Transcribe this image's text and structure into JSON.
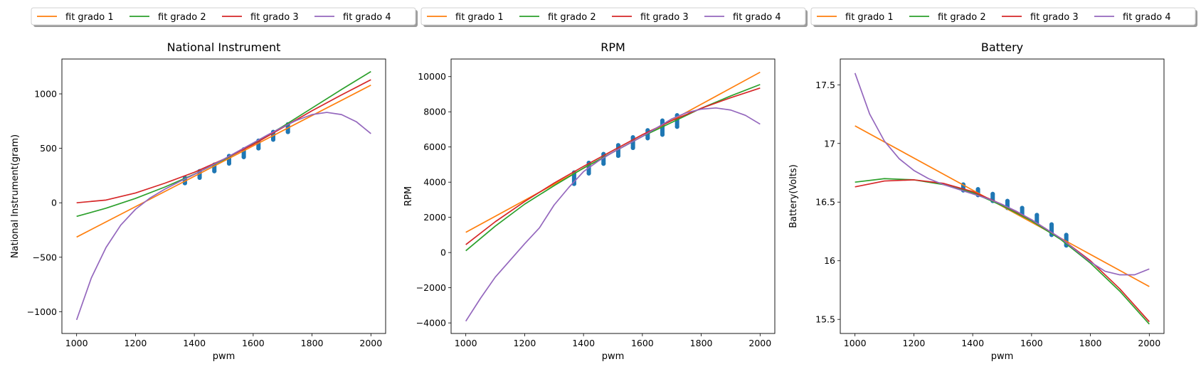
{
  "chart_data": [
    {
      "type": "scatter",
      "title": "National Instrument",
      "xlabel": "pwm",
      "ylabel": "National Instrument(gram)",
      "xlim": [
        950,
        2050
      ],
      "ylim": [
        -1200,
        1320
      ],
      "xticks": [
        1000,
        1200,
        1400,
        1600,
        1800,
        2000
      ],
      "yticks": [
        -1000,
        -500,
        0,
        500,
        1000
      ],
      "legend": {
        "placement": "top",
        "entries": [
          "fit grado 1",
          "fit grado 2",
          "fit grado 3",
          "fit grado 4"
        ]
      },
      "scatter_points": [
        [
          1368,
          180
        ],
        [
          1368,
          230
        ],
        [
          1418,
          230
        ],
        [
          1418,
          290
        ],
        [
          1468,
          290
        ],
        [
          1468,
          350
        ],
        [
          1518,
          360
        ],
        [
          1518,
          430
        ],
        [
          1568,
          420
        ],
        [
          1568,
          490
        ],
        [
          1618,
          500
        ],
        [
          1618,
          570
        ],
        [
          1668,
          580
        ],
        [
          1668,
          650
        ],
        [
          1718,
          650
        ],
        [
          1718,
          720
        ]
      ],
      "series": [
        {
          "name": "fit grado 1",
          "x": [
            1000,
            2000
          ],
          "y": [
            -315,
            1080
          ]
        },
        {
          "name": "fit grado 2",
          "x": [
            1000,
            1100,
            1200,
            1300,
            1400,
            1500,
            1600,
            1700,
            1800,
            1900,
            2000
          ],
          "y": [
            -125,
            -50,
            40,
            145,
            262,
            395,
            540,
            700,
            870,
            1040,
            1205
          ]
        },
        {
          "name": "fit grado 3",
          "x": [
            1000,
            1100,
            1200,
            1300,
            1400,
            1500,
            1600,
            1700,
            1800,
            1900,
            2000
          ],
          "y": [
            0,
            25,
            90,
            180,
            280,
            400,
            535,
            690,
            845,
            990,
            1130
          ]
        },
        {
          "name": "fit grado 4",
          "x": [
            1000,
            1050,
            1100,
            1150,
            1200,
            1250,
            1300,
            1350,
            1400,
            1450,
            1500,
            1550,
            1600,
            1650,
            1700,
            1750,
            1800,
            1850,
            1900,
            1950,
            2000
          ],
          "y": [
            -1075,
            -690,
            -410,
            -205,
            -60,
            45,
            125,
            195,
            260,
            330,
            400,
            475,
            550,
            625,
            695,
            760,
            810,
            830,
            810,
            745,
            635
          ]
        }
      ]
    },
    {
      "type": "scatter",
      "title": "RPM",
      "xlabel": "pwm",
      "ylabel": "RPM",
      "xlim": [
        950,
        2050
      ],
      "ylim": [
        -4600,
        11000
      ],
      "xticks": [
        1000,
        1200,
        1400,
        1600,
        1800,
        2000
      ],
      "yticks": [
        -4000,
        -2000,
        0,
        2000,
        4000,
        6000,
        8000,
        10000
      ],
      "legend": {
        "placement": "top",
        "entries": [
          "fit grado 1",
          "fit grado 2",
          "fit grado 3",
          "fit grado 4"
        ]
      },
      "scatter_points": [
        [
          1368,
          3900
        ],
        [
          1368,
          4550
        ],
        [
          1418,
          4500
        ],
        [
          1418,
          5100
        ],
        [
          1468,
          5050
        ],
        [
          1468,
          5600
        ],
        [
          1518,
          5500
        ],
        [
          1518,
          6100
        ],
        [
          1568,
          5950
        ],
        [
          1568,
          6550
        ],
        [
          1618,
          6500
        ],
        [
          1618,
          6950
        ],
        [
          1668,
          6700
        ],
        [
          1668,
          7500
        ],
        [
          1718,
          7150
        ],
        [
          1718,
          7800
        ]
      ],
      "series": [
        {
          "name": "fit grado 1",
          "x": [
            1000,
            2000
          ],
          "y": [
            1150,
            10250
          ]
        },
        {
          "name": "fit grado 2",
          "x": [
            1000,
            1100,
            1200,
            1300,
            1400,
            1500,
            1600,
            1700,
            1800,
            1900,
            2000
          ],
          "y": [
            100,
            1500,
            2750,
            3800,
            4800,
            5700,
            6600,
            7400,
            8200,
            8900,
            9550
          ]
        },
        {
          "name": "fit grado 3",
          "x": [
            1000,
            1100,
            1200,
            1300,
            1400,
            1500,
            1600,
            1700,
            1800,
            1900,
            2000
          ],
          "y": [
            450,
            1750,
            2900,
            3950,
            4900,
            5800,
            6700,
            7500,
            8200,
            8800,
            9350
          ]
        },
        {
          "name": "fit grado 4",
          "x": [
            1000,
            1050,
            1100,
            1150,
            1200,
            1250,
            1300,
            1350,
            1400,
            1450,
            1500,
            1550,
            1600,
            1650,
            1700,
            1750,
            1800,
            1850,
            1900,
            1950,
            2000
          ],
          "y": [
            -3900,
            -2600,
            -1400,
            -450,
            500,
            1400,
            2700,
            3700,
            4600,
            5200,
            5700,
            6150,
            6600,
            7100,
            7600,
            7950,
            8150,
            8220,
            8100,
            7800,
            7300
          ]
        }
      ]
    },
    {
      "type": "scatter",
      "title": "Battery",
      "xlabel": "pwm",
      "ylabel": "Battery(Volts)",
      "xlim": [
        950,
        2050
      ],
      "ylim": [
        15.38,
        17.72
      ],
      "xticks": [
        1000,
        1200,
        1400,
        1600,
        1800,
        2000
      ],
      "yticks": [
        15.5,
        16.0,
        16.5,
        17.0,
        17.5
      ],
      "legend": {
        "placement": "top",
        "entries": [
          "fit grado 1",
          "fit grado 2",
          "fit grado 3",
          "fit grado 4"
        ]
      },
      "scatter_points": [
        [
          1368,
          16.6
        ],
        [
          1368,
          16.65
        ],
        [
          1418,
          16.56
        ],
        [
          1418,
          16.61
        ],
        [
          1468,
          16.51
        ],
        [
          1468,
          16.57
        ],
        [
          1518,
          16.45
        ],
        [
          1518,
          16.51
        ],
        [
          1568,
          16.39
        ],
        [
          1568,
          16.45
        ],
        [
          1618,
          16.32
        ],
        [
          1618,
          16.39
        ],
        [
          1668,
          16.22
        ],
        [
          1668,
          16.31
        ],
        [
          1718,
          16.13
        ],
        [
          1718,
          16.22
        ]
      ],
      "series": [
        {
          "name": "fit grado 1",
          "x": [
            1000,
            2000
          ],
          "y": [
            17.15,
            15.78
          ]
        },
        {
          "name": "fit grado 2",
          "x": [
            1000,
            1100,
            1200,
            1300,
            1400,
            1500,
            1600,
            1700,
            1800,
            1900,
            2000
          ],
          "y": [
            16.67,
            16.7,
            16.69,
            16.65,
            16.58,
            16.47,
            16.34,
            16.18,
            15.98,
            15.74,
            15.46
          ]
        },
        {
          "name": "fit grado 3",
          "x": [
            1000,
            1100,
            1200,
            1300,
            1400,
            1500,
            1600,
            1700,
            1800,
            1900,
            2000
          ],
          "y": [
            16.63,
            16.68,
            16.69,
            16.66,
            16.59,
            16.48,
            16.35,
            16.19,
            16.0,
            15.76,
            15.48
          ]
        },
        {
          "name": "fit grado 4",
          "x": [
            1000,
            1050,
            1100,
            1150,
            1200,
            1250,
            1300,
            1350,
            1400,
            1450,
            1500,
            1550,
            1600,
            1650,
            1700,
            1750,
            1800,
            1850,
            1900,
            1950,
            2000
          ],
          "y": [
            17.6,
            17.25,
            17.02,
            16.87,
            16.77,
            16.7,
            16.65,
            16.61,
            16.57,
            16.53,
            16.48,
            16.42,
            16.35,
            16.27,
            16.19,
            16.09,
            15.99,
            15.91,
            15.88,
            15.88,
            15.93
          ]
        }
      ]
    }
  ],
  "colors": {
    "fit grado 1": "#ff7f0e",
    "fit grado 2": "#2ca02c",
    "fit grado 3": "#d62728",
    "fit grado 4": "#9467bd",
    "scatter": "#1f77b4"
  }
}
